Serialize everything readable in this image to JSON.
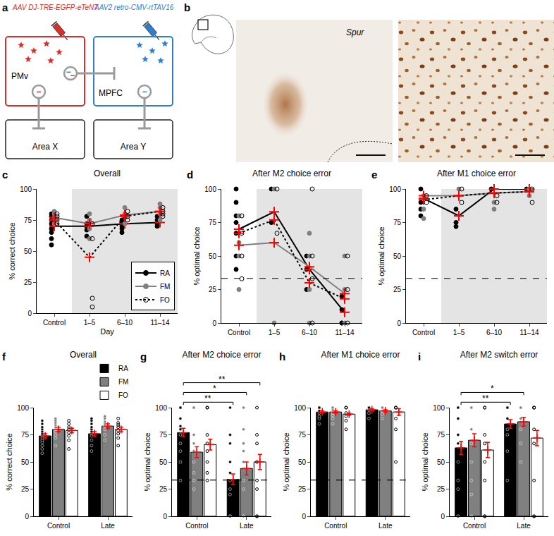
{
  "panels": {
    "a": {
      "label": "a",
      "virus_pmv": "AAV DJ-TRE-EGFP-eTeNT",
      "virus_mpfc": "AAV2 retro-CMV-rtTAV16",
      "regions": {
        "pmv": "PMv",
        "mpfc": "MPFC",
        "x": "Area X",
        "y": "Area Y"
      },
      "inhibition_sign": "−"
    },
    "b": {
      "label": "b",
      "annotation": "Spur"
    }
  },
  "chart_data": [
    {
      "label": "c",
      "type": "line",
      "title": "Overall",
      "xlabel": "Day",
      "ylabel": "% correct choice",
      "categories": [
        "Control",
        "1–5",
        "6–10",
        "11–14"
      ],
      "highlight": [
        "1–5",
        "11–14"
      ],
      "ylim": [
        0,
        100
      ],
      "yticks": [
        0,
        25,
        50,
        75,
        100
      ],
      "grid": false,
      "legend": "bottom right",
      "series": [
        {
          "name": "RA",
          "color": "#000000",
          "line_style": "solid",
          "marker": "circle",
          "values": [
            70,
            70,
            72,
            73
          ],
          "points": [
            [
              80,
              78,
              75,
              72,
              68,
              65,
              60,
              55
            ],
            [
              78,
              72,
              70,
              67,
              62
            ],
            [
              75,
              73,
              70,
              68,
              65
            ],
            [
              78,
              75,
              72,
              70
            ]
          ]
        },
        {
          "name": "FM",
          "color": "#808080",
          "line_style": "solid",
          "marker": "circle",
          "values": [
            77,
            72,
            79,
            82
          ],
          "points": [
            [
              82,
              80,
              77,
              72
            ],
            [
              80,
              75,
              68,
              60
            ],
            [
              85,
              80,
              77,
              72
            ],
            [
              88,
              85,
              80,
              75
            ]
          ]
        },
        {
          "name": "FO",
          "color": "#000000",
          "line_style": "dotted",
          "marker": "circle-open",
          "values": [
            75,
            45,
            78,
            82
          ],
          "points": [
            [
              80,
              78,
              75,
              72
            ],
            [
              72,
              60,
              12,
              5
            ],
            [
              82,
              78,
              75
            ],
            [
              85,
              82,
              80,
              78
            ]
          ]
        }
      ]
    },
    {
      "label": "d",
      "type": "line",
      "title": "After M2 choice error",
      "ylabel": "% optimal choice",
      "categories": [
        "Control",
        "1–5",
        "6–10",
        "11–14"
      ],
      "highlight": [
        "1–5",
        "11–14"
      ],
      "reference_line": 33.3,
      "ylim": [
        0,
        100
      ],
      "yticks": [
        0,
        25,
        50,
        75,
        100
      ],
      "grid": false,
      "series": [
        {
          "name": "RA",
          "color": "#000000",
          "line_style": "solid",
          "marker": "circle",
          "values": [
            70,
            83,
            40,
            8
          ],
          "points": [
            [
              100,
              90,
              80,
              75,
              67,
              50,
              40
            ],
            [
              100,
              75
            ],
            [
              50,
              40,
              25
            ],
            [
              20,
              10,
              0,
              0
            ]
          ]
        },
        {
          "name": "FM",
          "color": "#808080",
          "line_style": "solid",
          "marker": "circle",
          "values": [
            58,
            60,
            42,
            22
          ],
          "points": [
            [
              80,
              60,
              50,
              25
            ],
            [
              100,
              0
            ],
            [
              67,
              50,
              25,
              0
            ],
            [
              50,
              25,
              0
            ]
          ]
        },
        {
          "name": "FO",
          "color": "#000000",
          "line_style": "dotted",
          "marker": "circle-open",
          "values": [
            67,
            77,
            30,
            18
          ],
          "points": [
            [
              80,
              67,
              50,
              33
            ],
            [
              100,
              67
            ],
            [
              100,
              50,
              33,
              0
            ],
            [
              50,
              25,
              0
            ]
          ]
        }
      ]
    },
    {
      "label": "e",
      "type": "line",
      "title": "After M1 choice error",
      "ylabel": "% optimal choice",
      "categories": [
        "Control",
        "1–5",
        "6–10",
        "11–14"
      ],
      "highlight": [
        "1–5",
        "11–14"
      ],
      "reference_line": 33.3,
      "ylim": [
        0,
        100
      ],
      "yticks": [
        0,
        25,
        50,
        75,
        100
      ],
      "grid": false,
      "series": [
        {
          "name": "RA",
          "color": "#000000",
          "line_style": "solid",
          "marker": "circle",
          "values": [
            93,
            80,
            100,
            100
          ],
          "points": [
            [
              100,
              90,
              85,
              80
            ],
            [
              85,
              75,
              72
            ],
            [
              100
            ],
            [
              100
            ]
          ]
        },
        {
          "name": "FM",
          "color": "#808080",
          "line_style": "solid",
          "marker": "circle",
          "values": [
            95,
            95,
            97,
            98
          ],
          "points": [
            [
              95,
              85,
              78
            ],
            [
              100
            ],
            [
              90,
              85
            ],
            [
              100,
              95
            ]
          ]
        },
        {
          "name": "FO",
          "color": "#000000",
          "line_style": "dotted",
          "marker": "circle-open",
          "values": [
            92,
            95,
            97,
            98
          ],
          "points": [
            [
              95,
              90
            ],
            [
              100,
              90
            ],
            [
              95,
              90
            ],
            [
              100,
              90
            ]
          ]
        }
      ]
    },
    {
      "label": "f",
      "type": "bar",
      "title": "Overall",
      "ylabel": "% correct choice",
      "categories": [
        "Control",
        "Late"
      ],
      "ylim": [
        0,
        100
      ],
      "yticks": [
        0,
        25,
        50,
        75,
        100
      ],
      "grid": false,
      "legend": "top right",
      "series": [
        {
          "name": "RA",
          "color": "#000000",
          "marker": "circle",
          "values": [
            74,
            76
          ],
          "errors": [
            2,
            2
          ],
          "points": [
            [
              58,
              62,
              65,
              68,
              70,
              72,
              74,
              75,
              76,
              78,
              80,
              82,
              85,
              88
            ],
            [
              60,
              65,
              70,
              74,
              76,
              78,
              80,
              82,
              85,
              88,
              90
            ]
          ]
        },
        {
          "name": "FM",
          "color": "#808080",
          "marker": "circle",
          "values": [
            80,
            83
          ],
          "errors": [
            2,
            2
          ],
          "points": [
            [
              65,
              72,
              75,
              78,
              80,
              82,
              84,
              86,
              88,
              90
            ],
            [
              70,
              75,
              80,
              83,
              85,
              87,
              90,
              92
            ]
          ]
        },
        {
          "name": "FO",
          "color": "#ffffff",
          "marker": "circle-open",
          "values": [
            79,
            80
          ],
          "errors": [
            2,
            2
          ],
          "points": [
            [
              62,
              70,
              74,
              77,
              80,
              82,
              85,
              88
            ],
            [
              65,
              72,
              76,
              79,
              82,
              84,
              86,
              90
            ]
          ]
        }
      ]
    },
    {
      "label": "g",
      "type": "bar",
      "title": "After M2 choice error",
      "ylabel": "% optimal choice",
      "categories": [
        "Control",
        "Late"
      ],
      "reference_line": 33.3,
      "ylim": [
        0,
        100
      ],
      "yticks": [
        0,
        25,
        50,
        75,
        100
      ],
      "grid": false,
      "significance": [
        {
          "from": [
            "Control",
            "RA"
          ],
          "to": [
            "Late",
            "RA"
          ],
          "label": "**"
        },
        {
          "from": [
            "Control",
            "RA"
          ],
          "to": [
            "Late",
            "FM"
          ],
          "label": "*"
        },
        {
          "from": [
            "Control",
            "RA"
          ],
          "to": [
            "Late",
            "FO"
          ],
          "label": "**"
        }
      ],
      "series": [
        {
          "name": "RA",
          "color": "#000000",
          "marker": "circle",
          "values": [
            77,
            34
          ],
          "errors": [
            4,
            5
          ],
          "points": [
            [
              33,
              50,
              60,
              67,
              75,
              80,
              83,
              90,
              100,
              100,
              100
            ],
            [
              0,
              0,
              0,
              20,
              25,
              33,
              40,
              50,
              67,
              75,
              100
            ]
          ]
        },
        {
          "name": "FM",
          "color": "#808080",
          "marker": "circle",
          "values": [
            59,
            44
          ],
          "errors": [
            5,
            6
          ],
          "points": [
            [
              25,
              33,
              40,
              50,
              60,
              67,
              75,
              100,
              100,
              100
            ],
            [
              0,
              0,
              25,
              33,
              50,
              60,
              67,
              80,
              100
            ]
          ]
        },
        {
          "name": "FO",
          "color": "#ffffff",
          "marker": "circle-open",
          "values": [
            66,
            50
          ],
          "errors": [
            5,
            7
          ],
          "points": [
            [
              33,
              40,
              50,
              60,
              67,
              75,
              100,
              100
            ],
            [
              0,
              0,
              25,
              33,
              50,
              67,
              75,
              100
            ]
          ]
        }
      ]
    },
    {
      "label": "h",
      "type": "bar",
      "title": "After M1 choice error",
      "ylabel": "% optimal choice",
      "categories": [
        "Control",
        "Late"
      ],
      "reference_line": 33.3,
      "ylim": [
        0,
        100
      ],
      "yticks": [
        0,
        25,
        50,
        75,
        100
      ],
      "grid": false,
      "series": [
        {
          "name": "RA",
          "color": "#000000",
          "marker": "circle",
          "values": [
            96,
            98
          ],
          "errors": [
            1,
            1
          ],
          "points": [
            [
              85,
              90,
              92,
              95,
              97,
              100,
              100,
              100
            ],
            [
              90,
              95,
              98,
              100,
              100,
              100
            ]
          ]
        },
        {
          "name": "FM",
          "color": "#808080",
          "marker": "circle",
          "values": [
            96,
            97
          ],
          "errors": [
            1,
            1
          ],
          "points": [
            [
              85,
              90,
              93,
              95,
              98,
              100,
              100
            ],
            [
              90,
              94,
              97,
              100,
              100
            ]
          ]
        },
        {
          "name": "FO",
          "color": "#ffffff",
          "marker": "circle-open",
          "values": [
            94,
            96
          ],
          "errors": [
            1,
            3
          ],
          "points": [
            [
              80,
              88,
              92,
              95,
              100,
              100
            ],
            [
              50,
              80,
              90,
              100,
              100,
              100
            ]
          ]
        }
      ]
    },
    {
      "label": "i",
      "type": "bar",
      "title": "After M2 switch error",
      "ylabel": "% optimal choice",
      "categories": [
        "Control",
        "Late"
      ],
      "ylim": [
        0,
        100
      ],
      "yticks": [
        0,
        25,
        50,
        75,
        100
      ],
      "grid": false,
      "significance": [
        {
          "from": [
            "Control",
            "RA"
          ],
          "to": [
            "Late",
            "RA"
          ],
          "label": "**"
        },
        {
          "from": [
            "Control",
            "RA"
          ],
          "to": [
            "Late",
            "FM"
          ],
          "label": "*"
        }
      ],
      "series": [
        {
          "name": "RA",
          "color": "#000000",
          "marker": "circle",
          "values": [
            63,
            85
          ],
          "errors": [
            6,
            4
          ],
          "points": [
            [
              0,
              0,
              25,
              33,
              50,
              67,
              75,
              90,
              100,
              100
            ],
            [
              33,
              60,
              75,
              80,
              90,
              100,
              100,
              100
            ]
          ]
        },
        {
          "name": "FM",
          "color": "#808080",
          "marker": "circle",
          "values": [
            70,
            87
          ],
          "errors": [
            6,
            4
          ],
          "points": [
            [
              0,
              20,
              33,
              50,
              67,
              80,
              100,
              100
            ],
            [
              50,
              67,
              80,
              90,
              100,
              100,
              100
            ]
          ]
        },
        {
          "name": "FO",
          "color": "#ffffff",
          "marker": "circle-open",
          "values": [
            61,
            72
          ],
          "errors": [
            7,
            7
          ],
          "points": [
            [
              0,
              0,
              33,
              50,
              67,
              75,
              100,
              100
            ],
            [
              0,
              0,
              33,
              67,
              80,
              100,
              100,
              100
            ]
          ]
        }
      ]
    }
  ]
}
